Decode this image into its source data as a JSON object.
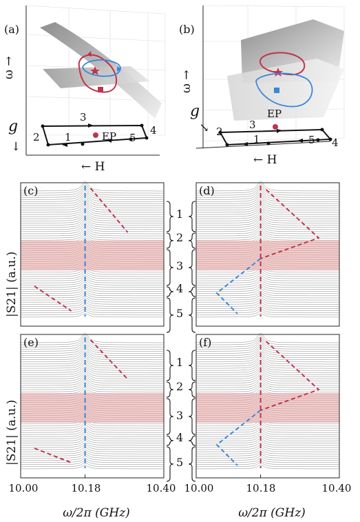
{
  "colors": {
    "red": "#c0334d",
    "blue": "#3a86d8",
    "band": "#e8a0a0",
    "trace": "#4a4a4a",
    "surface": "#a8a8a8",
    "surface_light": "#e8e8e8"
  },
  "panels_3d": [
    {
      "label": "(a)",
      "omega_axis": "ω →",
      "g_axis": "g",
      "h_axis": "← H",
      "ep_label": "EP",
      "loop_numbers": [
        "1",
        "2",
        "3",
        "4",
        "5"
      ]
    },
    {
      "label": "(b)",
      "omega_axis": "ω →",
      "g_axis": "g",
      "h_axis": "← H",
      "ep_label": "EP",
      "loop_numbers": [
        "1",
        "2",
        "3",
        "4",
        "5"
      ]
    }
  ],
  "segment_labels": [
    "1",
    "2",
    "3",
    "4",
    "5"
  ],
  "chart_data": [
    {
      "panel": "(c)",
      "type": "line",
      "ylabel": "|S21| (a.u.)",
      "xlim": [
        10.0,
        10.4
      ],
      "center_line": 10.18,
      "shaded_band": true
    },
    {
      "panel": "(d)",
      "type": "line",
      "xlim": [
        10.0,
        10.4
      ],
      "center_line": 10.18,
      "shaded_band": true
    },
    {
      "panel": "(e)",
      "type": "line",
      "ylabel": "|S21| (a.u.)",
      "xlabel": "ω/2π (GHz)",
      "xlim": [
        10.0,
        10.4
      ],
      "x_ticks": [
        "10.00",
        "10.18",
        "10.40"
      ],
      "center_line": 10.18,
      "shaded_band": true
    },
    {
      "panel": "(f)",
      "type": "line",
      "xlabel": "ω/2π (GHz)",
      "xlim": [
        10.0,
        10.4
      ],
      "x_ticks": [
        "10.00",
        "10.18",
        "10.40"
      ],
      "center_line": 10.18,
      "shaded_band": true
    }
  ]
}
